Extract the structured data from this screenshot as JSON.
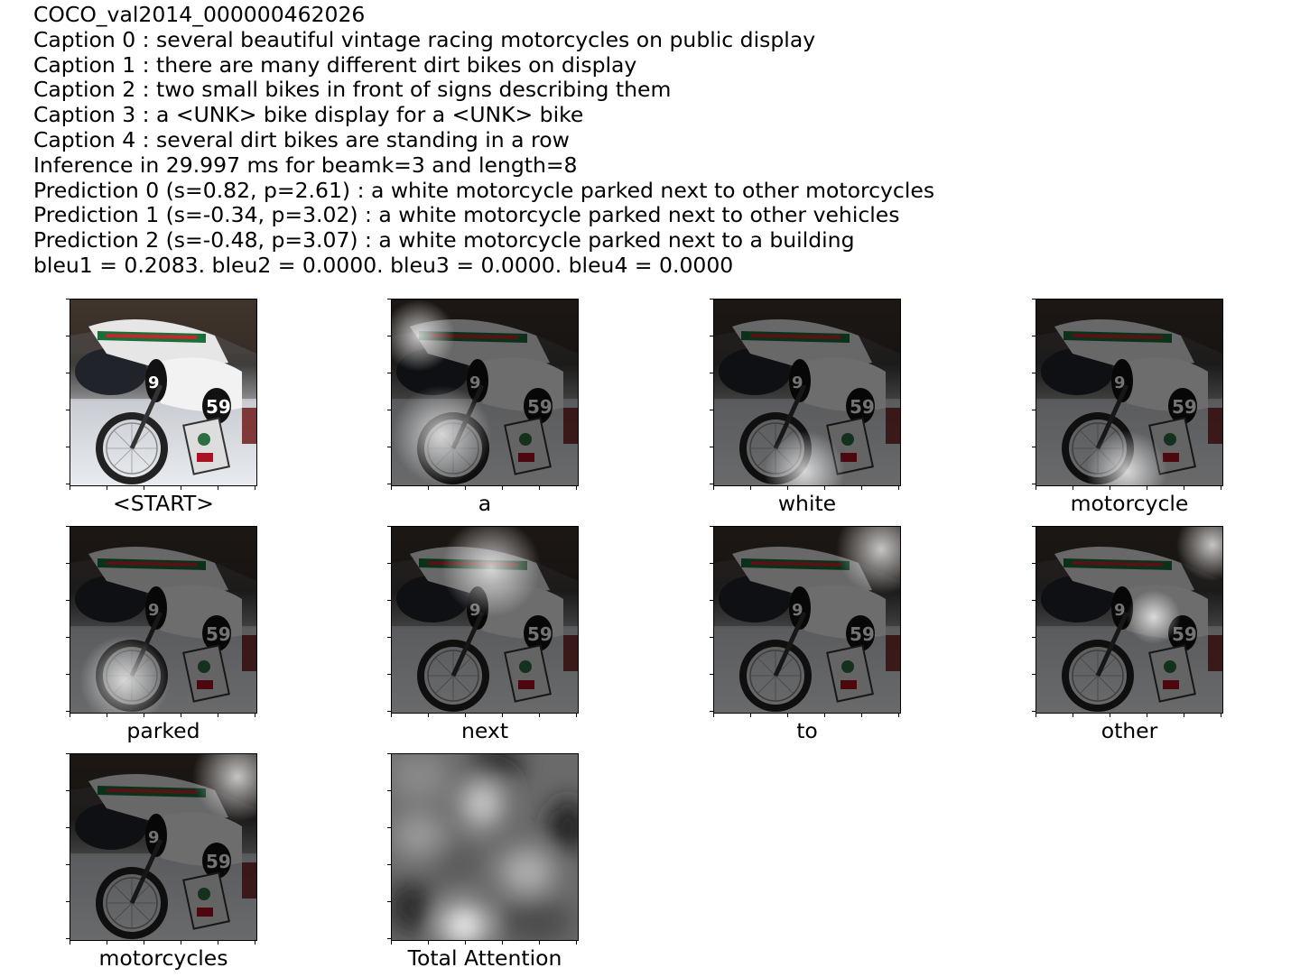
{
  "header": {
    "image_id": "COCO_val2014_000000462026",
    "captions": [
      "Caption 0 : several beautiful vintage racing motorcycles on public display",
      "Caption 1 : there are many different dirt bikes on display",
      "Caption 2 : two small bikes in front of signs describing them",
      "Caption 3 : a <UNK> bike display for a <UNK> bike",
      "Caption 4 : several dirt bikes are standing in a row"
    ],
    "inference": "Inference in 29.997 ms for beamk=3 and length=8",
    "predictions": [
      "Prediction 0 (s=0.82, p=2.61) : a white motorcycle parked next to other motorcycles",
      "Prediction 1 (s=-0.34, p=3.02) : a white motorcycle parked next to other vehicles",
      "Prediction 2 (s=-0.48, p=3.07) : a white motorcycle parked next to a building"
    ],
    "bleu": "bleu1 = 0.2083. bleu2 = 0.0000. bleu3 = 0.0000. bleu4 = 0.0000"
  },
  "panels": [
    {
      "label": "<START>",
      "kind": "photo"
    },
    {
      "label": "a",
      "kind": "attention",
      "focus": "lower-left and upper-left"
    },
    {
      "label": "white",
      "kind": "attention",
      "focus": "bottom-center"
    },
    {
      "label": "motorcycle",
      "kind": "attention",
      "focus": "bottom-center"
    },
    {
      "label": "parked",
      "kind": "attention",
      "focus": "lower-left"
    },
    {
      "label": "next",
      "kind": "attention",
      "focus": "top-center"
    },
    {
      "label": "to",
      "kind": "attention",
      "focus": "top-right"
    },
    {
      "label": "other",
      "kind": "attention",
      "focus": "center-right"
    },
    {
      "label": "motorcycles",
      "kind": "attention",
      "focus": "top-right"
    },
    {
      "label": "Total Attention",
      "kind": "heatmap"
    }
  ]
}
